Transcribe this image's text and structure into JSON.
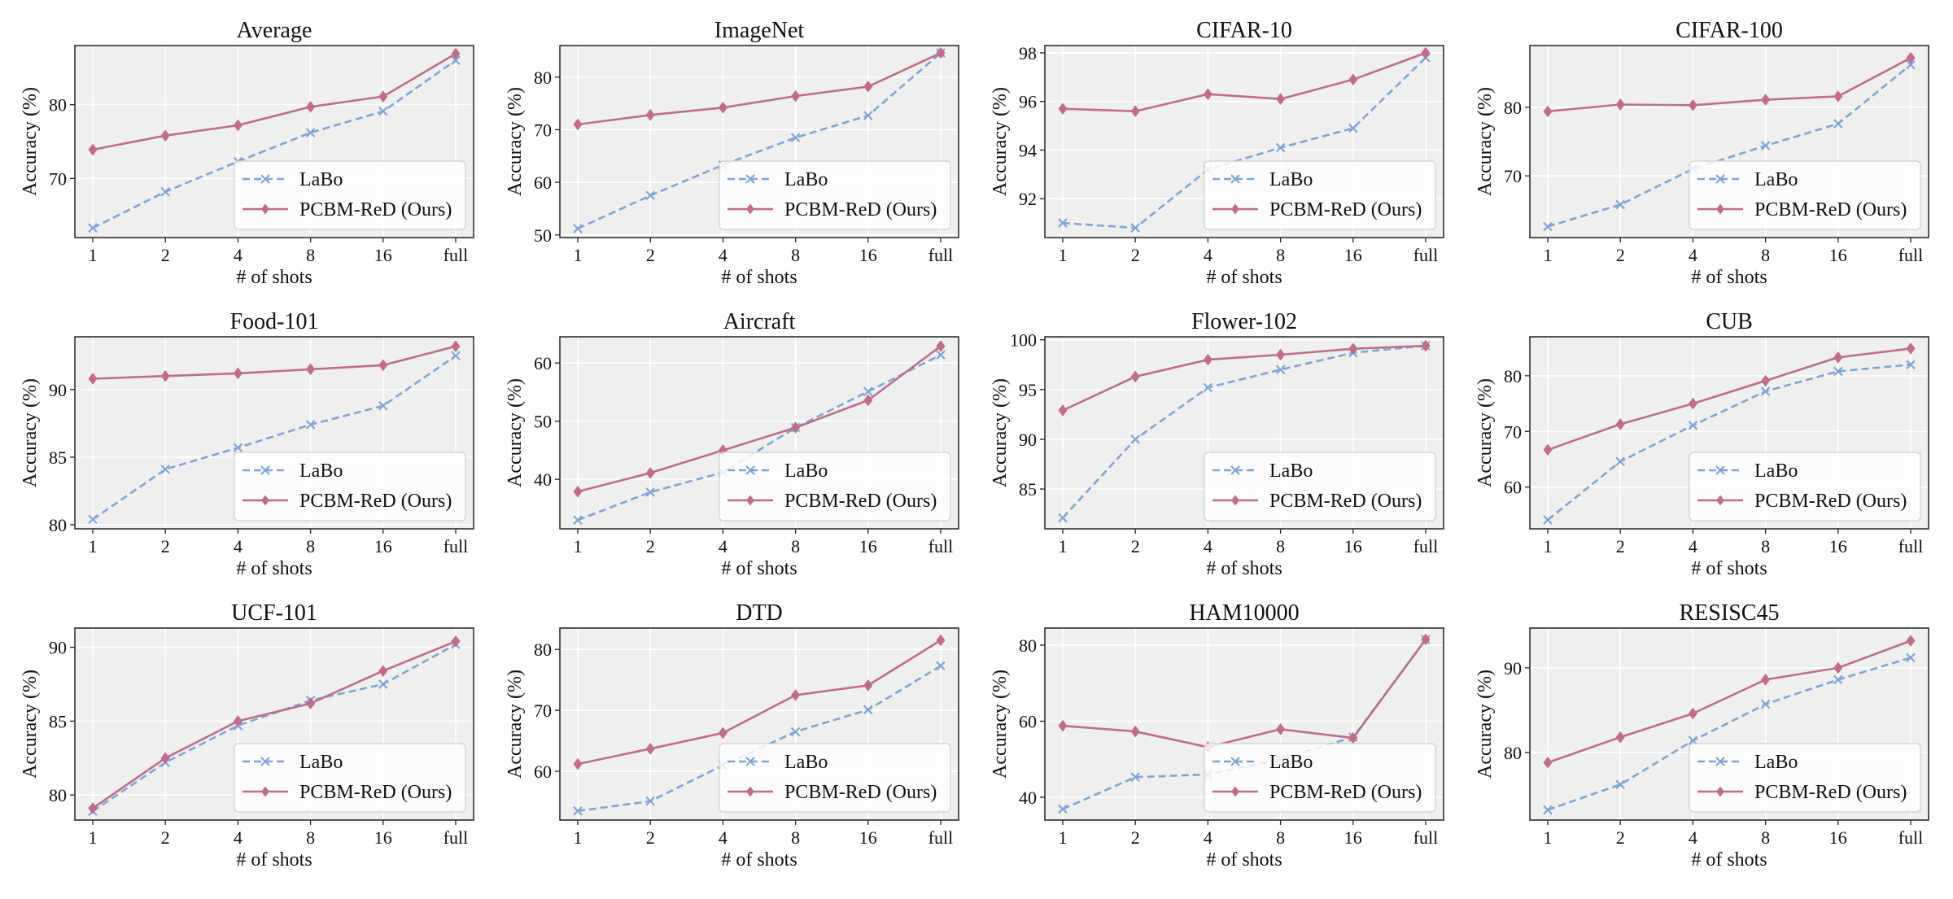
{
  "figure": {
    "x_categories": [
      "1",
      "2",
      "4",
      "8",
      "16",
      "full"
    ],
    "xlabel": "# of shots",
    "ylabel": "Accuracy (%)",
    "legend": {
      "labo": "LaBo",
      "pcbm": "PCBM-ReD (Ours)",
      "placement": "lower-right"
    },
    "colors": {
      "labo": "#7fa6d9",
      "pcbm": "#c06c8c",
      "plot_bg": "#efefef",
      "grid": "#ffffff"
    }
  },
  "chart_data": [
    {
      "type": "line",
      "title": "Average",
      "categories": [
        "1",
        "2",
        "4",
        "8",
        "16",
        "full"
      ],
      "ylim": [
        62,
        88
      ],
      "yticks": [
        70,
        80
      ],
      "xlabel": "# of shots",
      "ylabel": "Accuracy (%)",
      "series": [
        {
          "name": "LaBo",
          "values": [
            63.3,
            68.2,
            72.3,
            76.2,
            79.1,
            86.0
          ]
        },
        {
          "name": "PCBM-ReD (Ours)",
          "values": [
            73.9,
            75.8,
            77.2,
            79.7,
            81.1,
            86.9
          ]
        }
      ]
    },
    {
      "type": "line",
      "title": "ImageNet",
      "categories": [
        "1",
        "2",
        "4",
        "8",
        "16",
        "full"
      ],
      "ylim": [
        49.5,
        86
      ],
      "yticks": [
        50,
        60,
        70,
        80
      ],
      "xlabel": "# of shots",
      "ylabel": "Accuracy (%)",
      "series": [
        {
          "name": "LaBo",
          "values": [
            51.2,
            57.5,
            63.3,
            68.5,
            72.7,
            84.6
          ]
        },
        {
          "name": "PCBM-ReD (Ours)",
          "values": [
            71.0,
            72.8,
            74.2,
            76.4,
            78.2,
            84.6
          ]
        }
      ]
    },
    {
      "type": "line",
      "title": "CIFAR-10",
      "categories": [
        "1",
        "2",
        "4",
        "8",
        "16",
        "full"
      ],
      "ylim": [
        90.4,
        98.3
      ],
      "yticks": [
        92,
        94,
        96,
        98
      ],
      "xlabel": "# of shots",
      "ylabel": "Accuracy (%)",
      "series": [
        {
          "name": "LaBo",
          "values": [
            91.0,
            90.8,
            93.2,
            94.1,
            94.9,
            97.8
          ]
        },
        {
          "name": "PCBM-ReD (Ours)",
          "values": [
            95.7,
            95.6,
            96.3,
            96.1,
            96.9,
            98.0
          ]
        }
      ]
    },
    {
      "type": "line",
      "title": "CIFAR-100",
      "categories": [
        "1",
        "2",
        "4",
        "8",
        "16",
        "full"
      ],
      "ylim": [
        61,
        89
      ],
      "yticks": [
        70,
        80
      ],
      "xlabel": "# of shots",
      "ylabel": "Accuracy (%)",
      "series": [
        {
          "name": "LaBo",
          "values": [
            62.6,
            65.8,
            71.0,
            74.4,
            77.6,
            86.2
          ]
        },
        {
          "name": "PCBM-ReD (Ours)",
          "values": [
            79.4,
            80.4,
            80.3,
            81.1,
            81.6,
            87.2
          ]
        }
      ]
    },
    {
      "type": "line",
      "title": "Food-101",
      "categories": [
        "1",
        "2",
        "4",
        "8",
        "16",
        "full"
      ],
      "ylim": [
        79.7,
        93.9
      ],
      "yticks": [
        80,
        85,
        90
      ],
      "xlabel": "# of shots",
      "ylabel": "Accuracy (%)",
      "series": [
        {
          "name": "LaBo",
          "values": [
            80.4,
            84.1,
            85.7,
            87.4,
            88.8,
            92.5
          ]
        },
        {
          "name": "PCBM-ReD (Ours)",
          "values": [
            90.8,
            91.0,
            91.2,
            91.5,
            91.8,
            93.2
          ]
        }
      ]
    },
    {
      "type": "line",
      "title": "Aircraft",
      "categories": [
        "1",
        "2",
        "4",
        "8",
        "16",
        "full"
      ],
      "ylim": [
        31.5,
        64.5
      ],
      "yticks": [
        40,
        50,
        60
      ],
      "xlabel": "# of shots",
      "ylabel": "Accuracy (%)",
      "series": [
        {
          "name": "LaBo",
          "values": [
            33.0,
            37.8,
            41.2,
            48.9,
            55.1,
            61.4
          ]
        },
        {
          "name": "PCBM-ReD (Ours)",
          "values": [
            37.9,
            41.1,
            45.0,
            48.9,
            53.6,
            62.9
          ]
        }
      ]
    },
    {
      "type": "line",
      "title": "Flower-102",
      "categories": [
        "1",
        "2",
        "4",
        "8",
        "16",
        "full"
      ],
      "ylim": [
        81,
        100.3
      ],
      "yticks": [
        85,
        90,
        95,
        100
      ],
      "xlabel": "# of shots",
      "ylabel": "Accuracy (%)",
      "series": [
        {
          "name": "LaBo",
          "values": [
            82.1,
            90.0,
            95.2,
            97.0,
            98.7,
            99.4
          ]
        },
        {
          "name": "PCBM-ReD (Ours)",
          "values": [
            92.9,
            96.3,
            98.0,
            98.5,
            99.1,
            99.4
          ]
        }
      ]
    },
    {
      "type": "line",
      "title": "CUB",
      "categories": [
        "1",
        "2",
        "4",
        "8",
        "16",
        "full"
      ],
      "ylim": [
        52.5,
        87
      ],
      "yticks": [
        60,
        70,
        80
      ],
      "xlabel": "# of shots",
      "ylabel": "Accuracy (%)",
      "series": [
        {
          "name": "LaBo",
          "values": [
            54.1,
            64.6,
            71.1,
            77.2,
            80.8,
            82.0
          ]
        },
        {
          "name": "PCBM-ReD (Ours)",
          "values": [
            66.7,
            71.3,
            75.0,
            79.1,
            83.3,
            84.9
          ]
        }
      ]
    },
    {
      "type": "line",
      "title": "UCF-101",
      "categories": [
        "1",
        "2",
        "4",
        "8",
        "16",
        "full"
      ],
      "ylim": [
        78.3,
        91.3
      ],
      "yticks": [
        80,
        85,
        90
      ],
      "xlabel": "# of shots",
      "ylabel": "Accuracy (%)",
      "series": [
        {
          "name": "LaBo",
          "values": [
            78.9,
            82.2,
            84.7,
            86.4,
            87.5,
            90.2
          ]
        },
        {
          "name": "PCBM-ReD (Ours)",
          "values": [
            79.1,
            82.5,
            85.0,
            86.2,
            88.4,
            90.4
          ]
        }
      ]
    },
    {
      "type": "line",
      "title": "DTD",
      "categories": [
        "1",
        "2",
        "4",
        "8",
        "16",
        "full"
      ],
      "ylim": [
        52,
        83.5
      ],
      "yticks": [
        60,
        70,
        80
      ],
      "xlabel": "# of shots",
      "ylabel": "Accuracy (%)",
      "series": [
        {
          "name": "LaBo",
          "values": [
            53.5,
            55.1,
            61.0,
            66.5,
            70.1,
            77.3
          ]
        },
        {
          "name": "PCBM-ReD (Ours)",
          "values": [
            61.2,
            63.7,
            66.3,
            72.5,
            74.1,
            81.5
          ]
        }
      ]
    },
    {
      "type": "line",
      "title": "HAM10000",
      "categories": [
        "1",
        "2",
        "4",
        "8",
        "16",
        "full"
      ],
      "ylim": [
        34,
        84.5
      ],
      "yticks": [
        40,
        60,
        80
      ],
      "xlabel": "# of shots",
      "ylabel": "Accuracy (%)",
      "series": [
        {
          "name": "LaBo",
          "values": [
            36.9,
            45.3,
            46.0,
            50.0,
            55.8,
            81.5
          ]
        },
        {
          "name": "PCBM-ReD (Ours)",
          "values": [
            58.8,
            57.3,
            53.2,
            57.9,
            55.6,
            81.5
          ]
        }
      ]
    },
    {
      "type": "line",
      "title": "RESISC45",
      "categories": [
        "1",
        "2",
        "4",
        "8",
        "16",
        "full"
      ],
      "ylim": [
        72,
        94.7
      ],
      "yticks": [
        80,
        90
      ],
      "xlabel": "# of shots",
      "ylabel": "Accuracy (%)",
      "series": [
        {
          "name": "LaBo",
          "values": [
            73.2,
            76.2,
            81.4,
            85.7,
            88.6,
            91.2
          ]
        },
        {
          "name": "PCBM-ReD (Ours)",
          "values": [
            78.8,
            81.8,
            84.6,
            88.6,
            90.0,
            93.2
          ]
        }
      ]
    }
  ]
}
